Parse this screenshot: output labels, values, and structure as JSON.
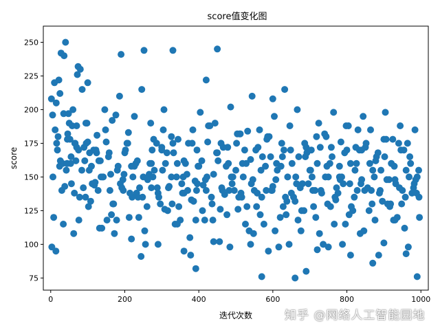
{
  "chart_data": {
    "type": "scatter",
    "title": "score值变化图",
    "xlabel": "迭代次数",
    "ylabel": "score",
    "xlim": [
      -20,
      1020
    ],
    "ylim": [
      66,
      262
    ],
    "xticks": [
      0,
      200,
      400,
      600,
      800,
      1000
    ],
    "yticks": [
      75,
      100,
      125,
      150,
      175,
      200,
      225,
      250
    ],
    "marker_color": "#1f77b4",
    "grid": false,
    "series": [
      {
        "x": [
          5,
          10,
          15,
          20,
          25,
          28,
          32,
          35,
          40,
          45,
          50,
          55,
          60,
          65,
          70,
          75,
          80,
          85,
          90,
          95,
          100,
          105,
          110,
          118,
          125,
          130,
          140,
          150,
          160,
          170,
          180,
          195,
          200,
          210,
          220,
          230,
          240,
          250,
          260,
          270,
          280,
          290,
          300,
          310,
          320,
          330,
          340,
          350,
          360,
          370,
          380,
          390,
          395,
          400,
          410,
          420,
          430,
          440,
          450,
          460,
          470,
          480,
          490,
          500,
          510,
          520,
          530,
          540,
          550,
          560,
          570,
          580,
          590,
          600,
          610,
          620,
          630,
          640,
          650,
          660,
          670,
          680,
          690,
          700,
          710,
          720,
          730,
          740,
          750,
          760,
          770,
          780,
          790,
          800,
          810,
          820,
          830,
          840,
          850,
          860,
          870,
          880,
          890,
          900,
          910,
          920,
          930,
          940,
          950,
          960,
          970,
          980,
          990,
          995,
          2,
          12,
          22,
          36,
          42,
          52,
          58,
          68,
          72,
          88,
          96,
          108,
          124,
          136,
          148,
          164,
          176,
          188,
          202,
          214,
          226,
          238,
          252,
          266,
          278,
          292,
          304,
          318,
          332,
          346,
          358,
          372,
          386,
          398,
          412,
          426,
          438,
          452,
          464,
          478,
          492,
          506,
          518,
          532,
          546,
          558,
          572,
          586,
          598,
          612,
          624,
          638,
          652,
          664,
          678,
          692,
          706,
          718,
          732,
          746,
          758,
          772,
          786,
          798,
          812,
          826,
          838,
          852,
          866,
          878,
          892,
          906,
          918,
          932,
          946,
          958,
          972,
          986,
          6,
          18,
          30,
          44,
          56,
          66,
          78,
          92,
          104,
          116,
          128,
          142,
          156,
          168,
          182,
          196,
          208,
          222,
          234,
          248,
          262,
          274,
          288,
          302,
          314,
          328,
          342,
          354,
          368,
          382,
          394,
          408,
          422,
          434,
          448,
          462,
          474,
          488,
          502,
          514,
          528,
          542,
          554,
          568,
          582,
          594,
          608,
          622,
          634,
          648,
          662,
          674,
          688,
          702,
          714,
          728,
          742,
          754,
          768,
          782,
          794,
          808,
          822,
          834,
          848,
          862,
          874,
          888,
          902,
          914,
          928,
          942,
          954,
          968,
          982,
          994,
          8,
          24,
          38,
          48,
          62,
          76,
          94,
          112,
          132,
          152,
          172,
          192,
          212,
          232,
          256,
          276,
          296,
          316,
          336,
          356,
          376,
          396,
          416,
          436,
          456,
          476,
          496,
          516,
          536,
          556,
          576,
          596,
          616,
          636,
          656,
          676,
          696,
          716,
          736,
          756,
          776,
          796,
          816,
          836,
          856,
          876,
          896,
          916,
          936,
          956,
          976,
          996,
          14,
          34,
          54,
          74,
          98,
          122,
          146,
          166,
          186,
          206,
          226,
          246,
          268,
          286,
          306,
          326,
          344,
          364,
          384,
          404,
          424,
          444,
          466,
          486,
          504,
          524,
          544,
          564,
          584,
          604,
          626,
          646,
          666,
          686,
          704,
          724,
          744,
          764,
          784,
          804,
          824,
          844,
          864,
          884,
          904,
          924,
          944,
          964,
          984,
          3,
          26,
          46,
          64,
          84,
          102,
          120,
          138,
          158,
          178,
          198,
          218,
          236,
          254,
          272,
          290,
          308,
          326,
          342,
          360,
          378,
          392,
          418,
          440,
          458,
          484,
          508,
          526,
          548,
          566,
          588,
          606,
          628,
          644,
          668,
          684,
          708,
          726,
          748,
          766,
          788,
          806,
          828,
          846,
          868,
          886,
          908,
          926,
          948,
          966,
          988,
          16,
          44,
          70,
          100,
          134,
          162,
          190,
          218,
          244,
          272,
          300,
          330,
          360,
          392,
          420,
          450,
          482,
          512,
          540,
          570,
          600,
          632,
          660,
          690,
          720,
          750,
          780,
          810,
          840,
          870,
          900,
          930,
          960,
          990
        ],
        "y": [
          196,
          220,
          205,
          180,
          212,
          242,
          160,
          197,
          250,
          178,
          190,
          165,
          200,
          175,
          188,
          170,
          230,
          215,
          172,
          190,
          176,
          168,
          158,
          144,
          181,
          162,
          150,
          176,
          140,
          130,
          155,
          148,
          168,
          183,
          135,
          160,
          142,
          150,
          128,
          190,
          155,
          138,
          172,
          160,
          143,
          175,
          150,
          118,
          162,
          140,
          133,
          147,
          170,
          158,
          125,
          140,
          188,
          152,
          168,
          175,
          137,
          160,
          145,
          155,
          182,
          150,
          128,
          163,
          140,
          172,
          135,
          158,
          180,
          143,
          160,
          120,
          170,
          150,
          138,
          132,
          165,
          145,
          172,
          155,
          128,
          160,
          140,
          182,
          150,
          165,
          133,
          158,
          145,
          170,
          160,
          135,
          185,
          148,
          172,
          125,
          155,
          165,
          140,
          178,
          130,
          160,
          148,
          175,
          140,
          155,
          165,
          142,
          150,
          135,
          208,
          185,
          222,
          240,
          155,
          178,
          188,
          162,
          226,
          142,
          175,
          132,
          168,
          150,
          185,
          122,
          196,
          145,
          170,
          138,
          158,
          120,
          244,
          152,
          178,
          135,
          185,
          142,
          168,
          128,
          150,
          175,
          132,
          158,
          144,
          188,
          118,
          162,
          140,
          172,
          150,
          126,
          160,
          184,
          148,
          138,
          165,
          180,
          140,
          155,
          175,
          132,
          160,
          145,
          125,
          168,
          150,
          180,
          138,
          158,
          172,
          142,
          150,
          188,
          128,
          160,
          145,
          175,
          140,
          162,
          155,
          178,
          130,
          145,
          170,
          135,
          160,
          148,
          150,
          170,
          140,
          160,
          145,
          175,
          135,
          162,
          155,
          170,
          140,
          150,
          165,
          130,
          158,
          140,
          175,
          150,
          162,
          135,
          148,
          170,
          142,
          155,
          168,
          130,
          160,
          145,
          152,
          175,
          140,
          162,
          150,
          135,
          168,
          142,
          158,
          150,
          175,
          138,
          160,
          145,
          170,
          155,
          140,
          165,
          148,
          158,
          135,
          170,
          150,
          142,
          165,
          155,
          140,
          172,
          150,
          160,
          135,
          148,
          168,
          145,
          155,
          170,
          140,
          160,
          150,
          138,
          165,
          148,
          158,
          142,
          170,
          150,
          145,
          155,
          120,
          158,
          143,
          197,
          108,
          118,
          135,
          145,
          112,
          118,
          108,
          142,
          120,
          138,
          100,
          150,
          130,
          125,
          115,
          138,
          105,
          145,
          118,
          130,
          102,
          122,
          140,
          135,
          110,
          128,
          115,
          140,
          98,
          122,
          135,
          110,
          145,
          120,
          100,
          128,
          138,
          115,
          125,
          108,
          142,
          118,
          132,
          128,
          120,
          112,
          138,
          120,
          95,
          115,
          160,
          232,
          190,
          170,
          200,
          192,
          210,
          175,
          195,
          215,
          160,
          175,
          200,
          180,
          178,
          160,
          185,
          198,
          176,
          190,
          172,
          202,
          182,
          170,
          210,
          185,
          178,
          195,
          165,
          188,
          200,
          175,
          170,
          190,
          180,
          198,
          176,
          188,
          172,
          195,
          185,
          168,
          198,
          178,
          188,
          175,
          185,
          98,
          162,
          182,
          138,
          155,
          128,
          146,
          112,
          168,
          118,
          152,
          104,
          135,
          110,
          142,
          100,
          126,
          150,
          115,
          138,
          92,
          118,
          148,
          102,
          126,
          98,
          135,
          115,
          108,
          122,
          95,
          110,
          128,
          100,
          118,
          125,
          140,
          108,
          130,
          115,
          100,
          122,
          140,
          110,
          130,
          92,
          148,
          118,
          130,
          98,
          138,
          175,
          160,
          172,
          220,
          162,
          152,
          241,
          158,
          91,
          160,
          170,
          244,
          95,
          82,
          222,
          245,
          140,
          182,
          100,
          76,
          208,
          215,
          75,
          80,
          96,
          98,
          150,
          92,
          170,
          86,
          101,
          118,
          93,
          76
        ]
      }
    ]
  },
  "watermark": "知乎 @网络人工智能园地"
}
